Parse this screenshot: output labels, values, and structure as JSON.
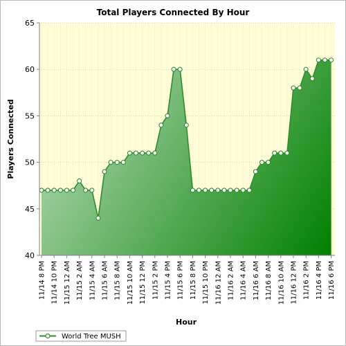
{
  "colors": {
    "plot_background": "#FFFDD8",
    "grid": "#C8C8A0",
    "line": "#2E8B2E",
    "fill_light": "#BEDDBE",
    "fill_dark": "#008000",
    "marker_fill": "#FFFFFF"
  },
  "chart_data": {
    "type": "area",
    "title": "Total Players Connected By Hour",
    "xlabel": "Hour",
    "ylabel": "Players Connected",
    "ylim": [
      40,
      65
    ],
    "yticks": [
      40,
      45,
      50,
      55,
      60,
      65
    ],
    "grid": true,
    "legend_position": "bottom-left",
    "x_tick_labels": [
      "11/14 8 PM",
      "11/14 10 PM",
      "11/15 12 AM",
      "11/15 2 AM",
      "11/15 4 AM",
      "11/15 6 AM",
      "11/15 8 AM",
      "11/15 10 AM",
      "11/15 12 PM",
      "11/15 2 PM",
      "11/15 4 PM",
      "11/15 6 PM",
      "11/15 8 PM",
      "11/15 10 PM",
      "11/16 12 AM",
      "11/16 2 AM",
      "11/16 4 AM",
      "11/16 6 AM",
      "11/16 8 AM",
      "11/16 10 AM",
      "11/16 12 PM",
      "11/16 2 PM",
      "11/16 4 PM",
      "11/16 6 PM"
    ],
    "series": [
      {
        "name": "World Tree MUSH",
        "values": [
          47,
          47,
          47,
          47,
          47,
          47,
          48,
          47,
          47,
          44,
          49,
          50,
          50,
          50,
          51,
          51,
          51,
          51,
          51,
          54,
          55,
          60,
          60,
          54,
          47,
          47,
          47,
          47,
          47,
          47,
          47,
          47,
          47,
          47,
          49,
          50,
          50,
          51,
          51,
          51,
          58,
          58,
          60,
          59,
          61,
          61,
          61
        ]
      }
    ]
  }
}
